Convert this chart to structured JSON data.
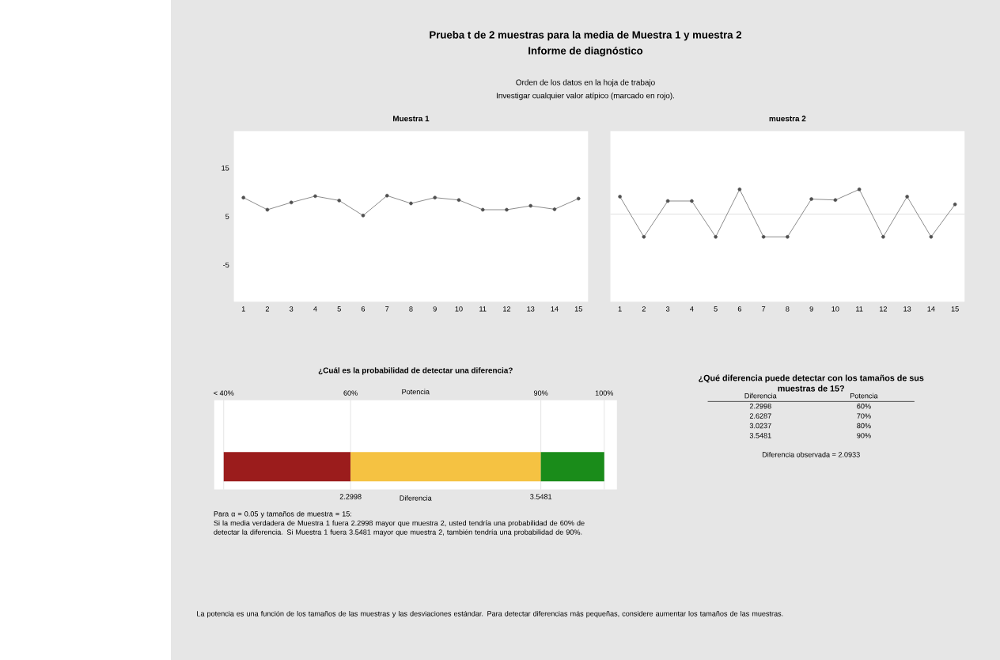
{
  "chart_data": [
    {
      "type": "other",
      "title": "Prueba t de 2 muestras para la media de Muestra 1 y muestra 2",
      "subtitle": "Informe de diagnóstico",
      "annotations": [
        "Orden de los datos en la hoja de trabajo",
        "Investigar cualquier valor atípico (marcado en rojo)."
      ]
    },
    {
      "type": "line",
      "title": "Muestra 1",
      "categories": [
        "1",
        "2",
        "3",
        "4",
        "5",
        "6",
        "7",
        "8",
        "9",
        "10",
        "11",
        "12",
        "13",
        "14",
        "15"
      ],
      "values": [
        8.9,
        6.4,
        7.9,
        9.2,
        8.3,
        5.2,
        9.3,
        7.7,
        8.9,
        8.4,
        6.4,
        6.4,
        7.2,
        6.5,
        8.7
      ],
      "color": "#505050",
      "marker": "circle",
      "ylim": [
        -12.6,
        22.6
      ],
      "yticks": [
        -5,
        5,
        15
      ]
    },
    {
      "type": "line",
      "title": "muestra 2",
      "categories": [
        "1",
        "2",
        "3",
        "4",
        "5",
        "6",
        "7",
        "8",
        "9",
        "10",
        "11",
        "12",
        "13",
        "14",
        "15"
      ],
      "values": [
        9.1,
        0.8,
        8.2,
        8.2,
        0.8,
        10.6,
        0.8,
        0.8,
        8.6,
        8.4,
        10.6,
        0.8,
        9.1,
        0.8,
        7.5
      ],
      "color": "#505050",
      "marker": "circle",
      "ylim": [
        -12.6,
        22.6
      ],
      "tick_labels": "x",
      "ref_lines": [
        {
          "axis": "y",
          "value": 5.5,
          "color": "#d0d0d0"
        }
      ]
    },
    {
      "type": "bar",
      "orientation": "horizontal",
      "title": "¿Cuál es la probabilidad de detectar una diferencia?",
      "categories": [
        null
      ],
      "series": [
        {
          "color": "#9b1c1c",
          "values": [
            20
          ],
          "base": [
            40
          ],
          "axis": "x2"
        },
        {
          "color": "#f5c242",
          "values": [
            30
          ],
          "base": [
            60
          ],
          "axis": "x2"
        },
        {
          "color": "#1a8c1a",
          "values": [
            10
          ],
          "base": [
            90
          ],
          "axis": "x2"
        }
      ],
      "xlim": [
        1.405,
        4.047
      ],
      "xticks": [
        2.2998,
        3.5481
      ],
      "xlabel": "Diferencia",
      "x2lim": [
        38.5,
        102
      ],
      "x2ticks": [
        {
          "value": 40,
          "label": "< 40%"
        },
        {
          "value": 60,
          "label": "60%"
        },
        {
          "value": 90,
          "label": "90%"
        },
        {
          "value": 100,
          "label": "100%"
        }
      ],
      "x2label": "Potencia",
      "grid": "x",
      "annotations": [
        "Para α = 0.05 y tamaños de muestra = 15:",
        "Si la media verdadera de Muestra 1 fuera 2.2998 mayor que muestra 2, usted tendría una probabilidad de 60% de detectar la diferencia. Si Muestra 1 fuera 3.5481 mayor que muestra 2, también tendría una probabilidad de 90%."
      ]
    },
    {
      "type": "other",
      "title": "¿Qué diferencia puede detectar con los tamaños de sus muestras de 15?",
      "annotations": [
        "Diferencia",
        "Potencia",
        "2.2998",
        "60%",
        "2.6287",
        "70%",
        "3.0237",
        "80%",
        "3.5481",
        "90%",
        "Diferencia observada = 2.0933"
      ]
    },
    {
      "type": "other",
      "annotations": [
        "La potencia es una función de los tamaños de las muestras y las desviaciones estándar. Para detectar diferencias más pequeñas, considere aumentar los tamaños de las muestras."
      ]
    }
  ]
}
